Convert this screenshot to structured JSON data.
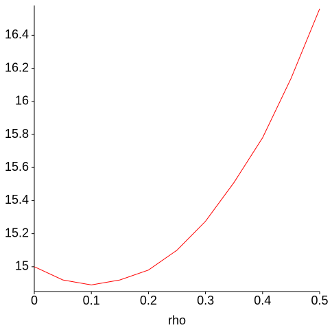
{
  "chart_data": {
    "type": "line",
    "x_label": "rho",
    "x": [
      0,
      0.05,
      0.1,
      0.15,
      0.2,
      0.25,
      0.3,
      0.35,
      0.4,
      0.45,
      0.5
    ],
    "series": [
      {
        "color": "#ff0000",
        "values": [
          15.0,
          14.92,
          14.89,
          14.92,
          14.98,
          15.1,
          15.275,
          15.51,
          15.78,
          16.14,
          16.56
        ]
      }
    ],
    "xlim": [
      0,
      0.5
    ],
    "xticks": [
      0,
      0.1,
      0.2,
      0.3,
      0.4,
      0.5
    ],
    "ylim": [
      14.85,
      16.58
    ],
    "yticks": [
      15,
      15.2,
      15.4,
      15.6,
      15.8,
      16,
      16.2,
      16.4
    ]
  }
}
